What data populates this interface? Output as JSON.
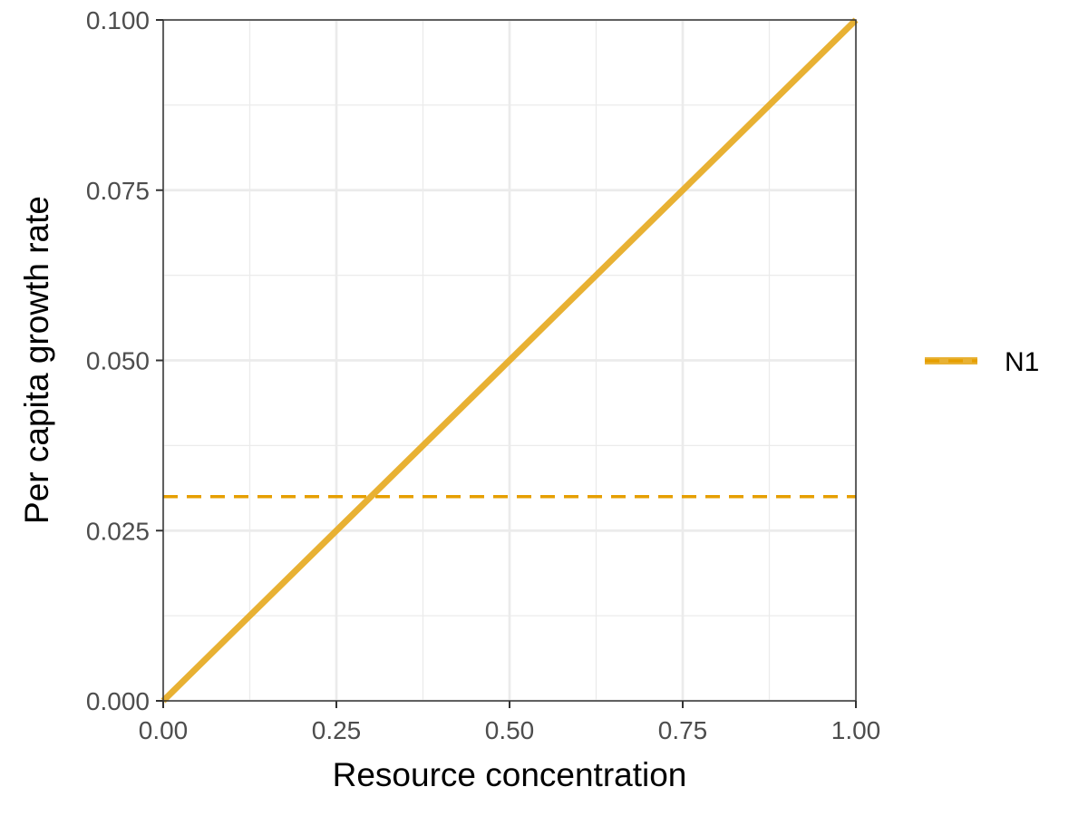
{
  "chart_data": {
    "type": "line",
    "xlabel": "Resource concentration",
    "ylabel": "Per capita growth rate",
    "xlim": [
      0,
      1
    ],
    "ylim": [
      0,
      0.1
    ],
    "x_ticks": [
      0,
      0.25,
      0.5,
      0.75,
      1
    ],
    "x_tick_labels": [
      "0.00",
      "0.25",
      "0.50",
      "0.75",
      "1.00"
    ],
    "y_ticks": [
      0,
      0.025,
      0.05,
      0.075,
      0.1
    ],
    "y_tick_labels": [
      "0.000",
      "0.025",
      "0.050",
      "0.075",
      "0.100"
    ],
    "grid": true,
    "legend": {
      "placement": "right",
      "entries": [
        "N1"
      ]
    },
    "series": [
      {
        "name": "N1",
        "style": "solid",
        "color": "#E8B133",
        "x": [
          0,
          1
        ],
        "y": [
          0,
          0.1
        ]
      }
    ],
    "reference_lines": [
      {
        "orientation": "horizontal",
        "y": 0.03,
        "style": "dashed",
        "color": "#E69F00"
      }
    ]
  }
}
